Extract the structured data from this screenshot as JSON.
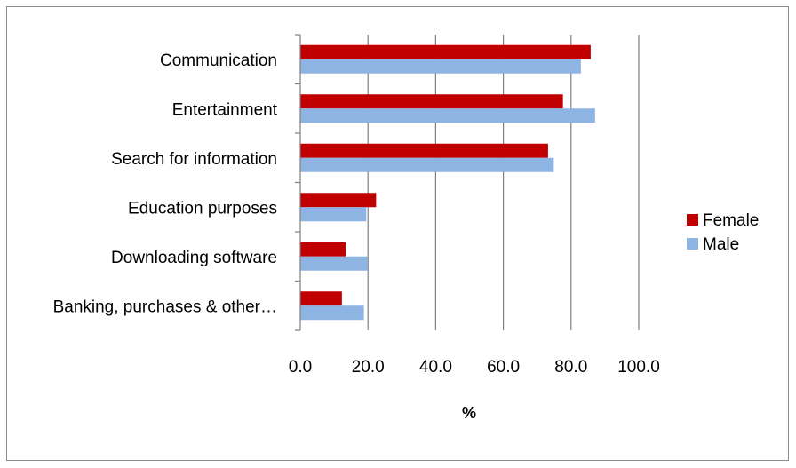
{
  "chart_data": {
    "type": "bar",
    "orientation": "horizontal",
    "categories": [
      "Communication",
      "Entertainment",
      "Search for information",
      "Education purposes",
      "Downloading software",
      "Banking, purchases & other…"
    ],
    "series": [
      {
        "name": "Female",
        "color": "#c00000",
        "values": [
          85.8,
          77.6,
          73.2,
          22.4,
          13.4,
          12.3
        ]
      },
      {
        "name": "Male",
        "color": "#8eb4e3",
        "values": [
          82.9,
          87.1,
          74.9,
          19.5,
          19.9,
          18.8
        ]
      }
    ],
    "xlabel": "%",
    "xlim": [
      0,
      100
    ],
    "xticks": [
      "0.0",
      "20.0",
      "40.0",
      "60.0",
      "80.0",
      "100.0"
    ],
    "grid": true,
    "legend": "right"
  }
}
